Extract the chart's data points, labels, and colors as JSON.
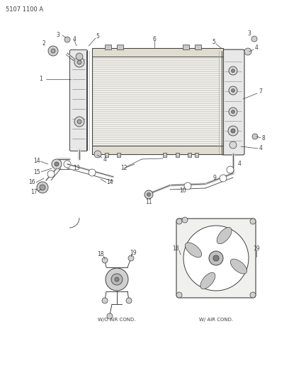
{
  "diagram_id": "5107 1100 A",
  "bg": "#ffffff",
  "lc": "#404040",
  "tc": "#222222",
  "fig_width": 4.08,
  "fig_height": 5.33,
  "dpi": 100,
  "bottom_label_left": "W/O AIR COND.",
  "bottom_label_right": "W/ AIR COND."
}
